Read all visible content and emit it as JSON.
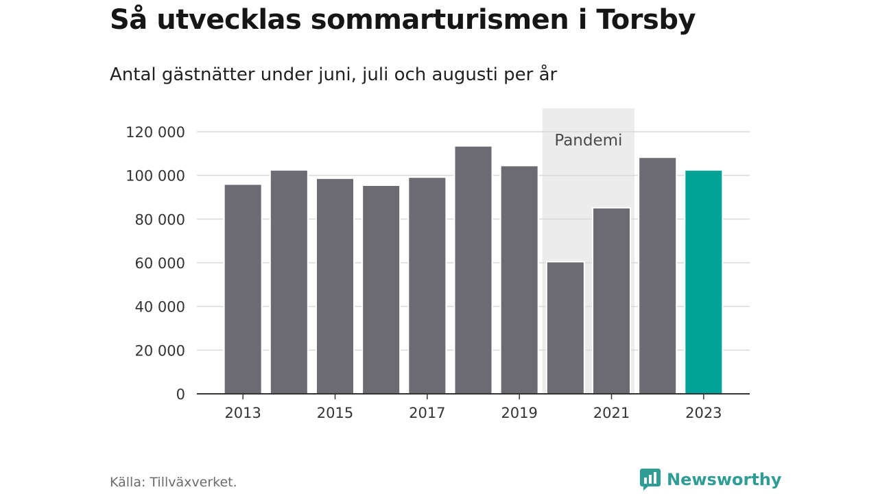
{
  "title": "Så utvecklas sommarturismen i Torsby",
  "subtitle": "Antal gästnätter under juni, juli och augusti per år",
  "source": "Källa: Tillväxverket.",
  "brand": "Newsworthy",
  "colors": {
    "bar": "#6c6b71",
    "highlight": "#00a396",
    "band": "#ececec",
    "grid": "#d9d9d9",
    "axis": "#333333",
    "brand": "#2f9c95"
  },
  "chart_data": {
    "type": "bar",
    "categories": [
      "2013",
      "2014",
      "2015",
      "2016",
      "2017",
      "2018",
      "2019",
      "2020",
      "2021",
      "2022",
      "2023"
    ],
    "values": [
      96000,
      102500,
      98700,
      95500,
      99200,
      113500,
      104500,
      60500,
      85200,
      108300,
      102500
    ],
    "highlight_index": 10,
    "x_tick_labels": [
      "2013",
      "2015",
      "2017",
      "2019",
      "2021",
      "2023"
    ],
    "y_ticks": [
      0,
      20000,
      40000,
      60000,
      80000,
      100000,
      120000
    ],
    "y_tick_labels": [
      "0",
      "20 000",
      "40 000",
      "60 000",
      "80 000",
      "100 000",
      "120 000"
    ],
    "ylim": [
      0,
      120000
    ],
    "grid": true,
    "annotation": {
      "label": "Pandemi",
      "from": "2020",
      "to": "2021"
    }
  }
}
